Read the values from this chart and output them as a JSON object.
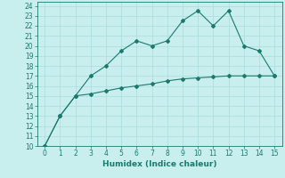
{
  "line1_x": [
    0,
    1,
    2,
    3,
    4,
    5,
    6,
    7,
    8,
    9,
    10,
    11,
    12,
    13,
    14,
    15
  ],
  "line1_y": [
    10.0,
    13.0,
    15.0,
    17.0,
    18.0,
    19.5,
    20.5,
    20.0,
    20.5,
    22.5,
    23.5,
    22.0,
    23.5,
    20.0,
    19.5,
    17.0
  ],
  "line2_x": [
    0,
    1,
    2,
    3,
    4,
    5,
    6,
    7,
    8,
    9,
    10,
    11,
    12,
    13,
    14,
    15
  ],
  "line2_y": [
    10.0,
    13.0,
    15.0,
    15.2,
    15.5,
    15.8,
    16.0,
    16.2,
    16.5,
    16.7,
    16.8,
    16.9,
    17.0,
    17.0,
    17.0,
    17.0
  ],
  "line_color": "#1a7a6e",
  "bg_color": "#c8eeee",
  "grid_color": "#b0dede",
  "xlabel": "Humidex (Indice chaleur)",
  "xlim": [
    -0.5,
    15.5
  ],
  "ylim": [
    10,
    24.4
  ],
  "xticks": [
    0,
    1,
    2,
    3,
    4,
    5,
    6,
    7,
    8,
    9,
    10,
    11,
    12,
    13,
    14,
    15
  ],
  "yticks": [
    10,
    11,
    12,
    13,
    14,
    15,
    16,
    17,
    18,
    19,
    20,
    21,
    22,
    23,
    24
  ],
  "label_fontsize": 6.5,
  "tick_fontsize": 5.5
}
